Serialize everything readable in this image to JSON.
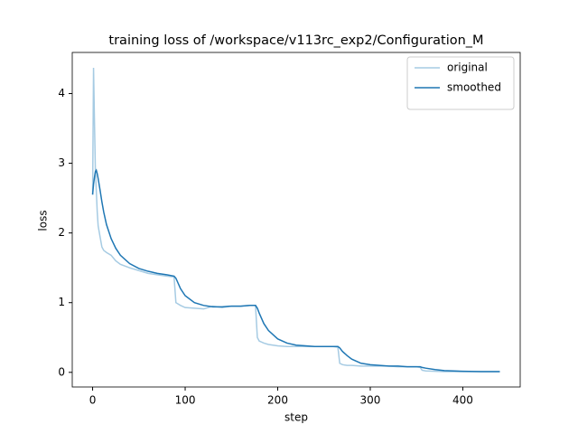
{
  "chart_data": {
    "type": "line",
    "title": "training loss of /workspace/v113rc_exp2/Configuration_M",
    "xlabel": "step",
    "ylabel": "loss",
    "x": [
      0,
      1,
      2,
      3,
      4,
      5,
      6,
      8,
      10,
      12,
      15,
      20,
      25,
      30,
      40,
      50,
      60,
      70,
      80,
      88,
      90,
      95,
      100,
      110,
      120,
      130,
      140,
      150,
      160,
      170,
      176,
      178,
      180,
      185,
      190,
      200,
      210,
      220,
      230,
      240,
      250,
      260,
      265,
      267,
      270,
      275,
      280,
      290,
      300,
      310,
      320,
      330,
      340,
      350,
      354,
      356,
      360,
      370,
      380,
      400,
      420,
      440
    ],
    "series": [
      {
        "name": "original",
        "color": "#a6cbe3",
        "values": [
          2.55,
          4.37,
          3.6,
          2.9,
          2.6,
          2.3,
          2.1,
          1.95,
          1.8,
          1.75,
          1.72,
          1.68,
          1.6,
          1.55,
          1.5,
          1.46,
          1.42,
          1.4,
          1.38,
          1.37,
          1.0,
          0.96,
          0.93,
          0.92,
          0.91,
          0.95,
          0.93,
          0.95,
          0.95,
          0.96,
          0.96,
          0.5,
          0.45,
          0.42,
          0.4,
          0.38,
          0.37,
          0.37,
          0.37,
          0.37,
          0.37,
          0.37,
          0.36,
          0.13,
          0.11,
          0.1,
          0.1,
          0.09,
          0.09,
          0.09,
          0.09,
          0.08,
          0.08,
          0.08,
          0.07,
          0.03,
          0.02,
          0.015,
          0.01,
          0.01,
          0.01,
          0.01
        ]
      },
      {
        "name": "smoothed",
        "color": "#1f77b4",
        "values": [
          2.55,
          2.7,
          2.8,
          2.88,
          2.9,
          2.85,
          2.78,
          2.62,
          2.45,
          2.3,
          2.12,
          1.92,
          1.78,
          1.68,
          1.56,
          1.49,
          1.45,
          1.42,
          1.4,
          1.38,
          1.35,
          1.2,
          1.1,
          1.0,
          0.96,
          0.94,
          0.94,
          0.95,
          0.95,
          0.96,
          0.96,
          0.92,
          0.85,
          0.7,
          0.6,
          0.48,
          0.42,
          0.39,
          0.38,
          0.37,
          0.37,
          0.37,
          0.37,
          0.35,
          0.3,
          0.24,
          0.19,
          0.13,
          0.11,
          0.1,
          0.09,
          0.09,
          0.08,
          0.08,
          0.08,
          0.07,
          0.06,
          0.04,
          0.025,
          0.015,
          0.01,
          0.01
        ]
      }
    ],
    "xlim": [
      -22,
      462
    ],
    "xticks": [
      0,
      100,
      200,
      300,
      400
    ],
    "ylim": [
      -0.21,
      4.59
    ],
    "yticks": [
      0,
      1,
      2,
      3,
      4
    ],
    "grid": false,
    "legend": "upper right"
  }
}
